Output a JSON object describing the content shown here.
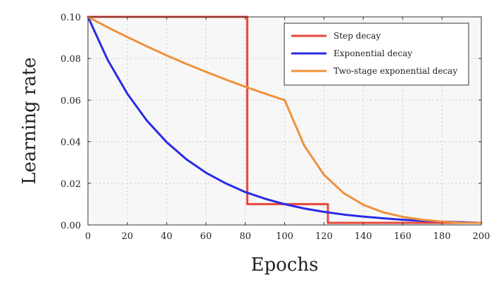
{
  "chart_data": {
    "type": "line",
    "title": "",
    "xlabel": "Epochs",
    "ylabel": "Learning rate",
    "xlim": [
      0,
      200
    ],
    "ylim": [
      0,
      0.1
    ],
    "x_ticks": [
      "0",
      "20",
      "40",
      "60",
      "80",
      "100",
      "120",
      "140",
      "160",
      "180",
      "200"
    ],
    "y_ticks": [
      "0.00",
      "0.02",
      "0.04",
      "0.06",
      "0.08",
      "0.10"
    ],
    "grid": true,
    "legend_position": "top-right",
    "series": [
      {
        "name": "Step decay",
        "color": "#e8463a",
        "x": [
          0,
          81,
          81,
          122,
          122,
          200
        ],
        "y": [
          0.1,
          0.1,
          0.01,
          0.01,
          0.001,
          0.001
        ]
      },
      {
        "name": "Exponential decay",
        "color": "#2a2ae6",
        "x": [
          0,
          10,
          20,
          30,
          40,
          50,
          60,
          70,
          80,
          90,
          100,
          110,
          120,
          130,
          140,
          150,
          160,
          170,
          180,
          190,
          200
        ],
        "y": [
          0.1,
          0.0794,
          0.0631,
          0.0501,
          0.0398,
          0.0316,
          0.0251,
          0.02,
          0.0158,
          0.0126,
          0.01,
          0.0079,
          0.0063,
          0.005,
          0.004,
          0.0032,
          0.0025,
          0.002,
          0.0016,
          0.0013,
          0.001
        ]
      },
      {
        "name": "Two-stage exponential decay",
        "color": "#f0913a",
        "x": [
          0,
          10,
          20,
          30,
          40,
          50,
          60,
          70,
          80,
          90,
          100,
          110,
          120,
          130,
          140,
          150,
          160,
          170,
          180,
          190,
          200
        ],
        "y": [
          0.1,
          0.095,
          0.0903,
          0.0858,
          0.0815,
          0.0774,
          0.0736,
          0.0699,
          0.0664,
          0.0631,
          0.06,
          0.0381,
          0.0241,
          0.0153,
          0.0097,
          0.0061,
          0.0039,
          0.0025,
          0.0016,
          0.001,
          0.001
        ]
      }
    ]
  }
}
